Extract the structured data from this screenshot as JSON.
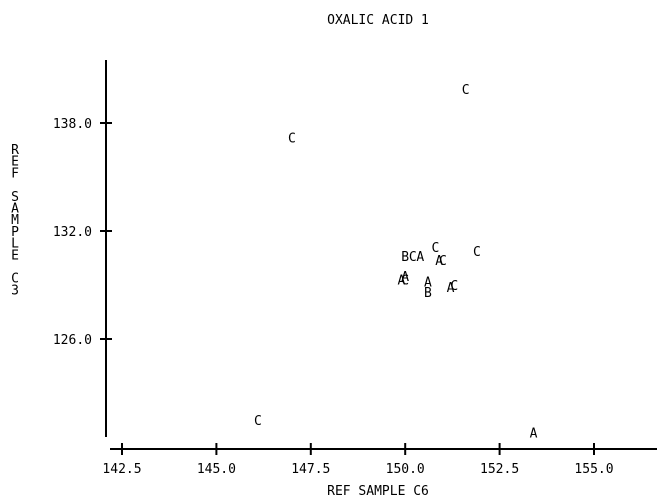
{
  "chart_data": {
    "type": "scatter",
    "title": "OXALIC ACID 1",
    "xlabel": "REF SAMPLE C6",
    "ylabel": "REF SAMPLE C3",
    "xlim": [
      142.5,
      157.0
    ],
    "ylim": [
      120.0,
      141.5
    ],
    "xticks": [
      "142.5",
      "145.0",
      "147.5",
      "150.0",
      "152.5",
      "155.0"
    ],
    "yticks": [
      "126.0",
      "132.0",
      "138.0"
    ],
    "grid": false,
    "points": [
      {
        "x": 151.6,
        "y": 139.9,
        "label": "C"
      },
      {
        "x": 147.0,
        "y": 137.2,
        "label": "C"
      },
      {
        "x": 151.9,
        "y": 130.9,
        "label": "C"
      },
      {
        "x": 150.8,
        "y": 131.1,
        "label": "C"
      },
      {
        "x": 150.0,
        "y": 130.6,
        "label": "B"
      },
      {
        "x": 150.2,
        "y": 130.6,
        "label": "C"
      },
      {
        "x": 150.4,
        "y": 130.6,
        "label": "A"
      },
      {
        "x": 150.9,
        "y": 130.4,
        "label": "A"
      },
      {
        "x": 151.0,
        "y": 130.4,
        "label": "C"
      },
      {
        "x": 149.9,
        "y": 129.3,
        "label": "A"
      },
      {
        "x": 150.0,
        "y": 129.3,
        "label": "C"
      },
      {
        "x": 150.0,
        "y": 129.5,
        "label": "A"
      },
      {
        "x": 150.6,
        "y": 129.2,
        "label": "A"
      },
      {
        "x": 150.6,
        "y": 128.6,
        "label": "B"
      },
      {
        "x": 151.2,
        "y": 128.9,
        "label": "A"
      },
      {
        "x": 151.3,
        "y": 129.0,
        "label": "C"
      },
      {
        "x": 146.1,
        "y": 121.5,
        "label": "C"
      },
      {
        "x": 153.4,
        "y": 120.8,
        "label": "A"
      }
    ]
  }
}
